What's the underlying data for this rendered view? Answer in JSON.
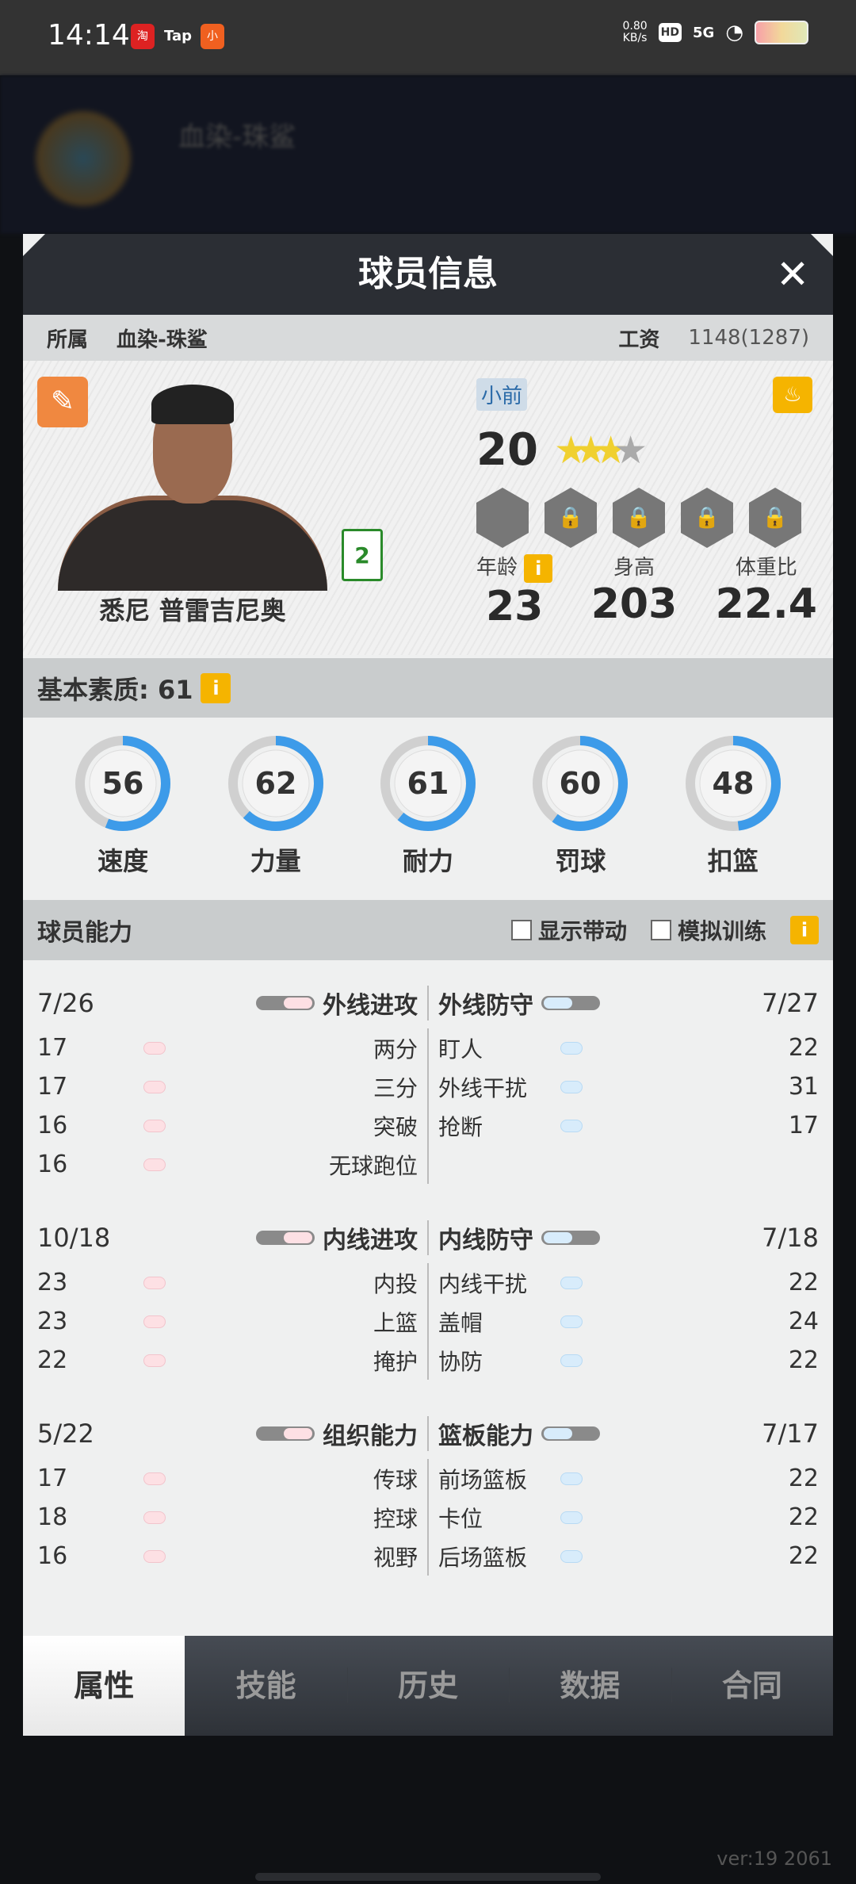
{
  "status_bar": {
    "time": "14:14",
    "apps": [
      "淘",
      "Tap",
      "小"
    ],
    "net_speed": "0.80",
    "net_unit": "KB/s",
    "hd": "HD",
    "signal": "5G"
  },
  "background": {
    "team_name": "血染-珠鲨"
  },
  "modal": {
    "title": "球员信息",
    "info": {
      "team_label": "所属",
      "team": "血染-珠鲨",
      "salary_label": "工资",
      "salary": "1148(1287)"
    },
    "player": {
      "name": "悉尼 普雷吉尼奥",
      "jersey": "2",
      "position": "小前",
      "rating": "20",
      "stars": {
        "filled": 3,
        "total": 4
      },
      "bio": [
        {
          "label": "年龄",
          "value": "23"
        },
        {
          "label": "身高",
          "value": "203"
        },
        {
          "label": "体重比",
          "value": "22.4"
        }
      ],
      "info_icon": "i"
    },
    "basic": {
      "label": "基本素质: 61",
      "info_icon": "i",
      "gauges": [
        {
          "label": "速度",
          "value": 56
        },
        {
          "label": "力量",
          "value": 62
        },
        {
          "label": "耐力",
          "value": 61
        },
        {
          "label": "罚球",
          "value": 60
        },
        {
          "label": "扣篮",
          "value": 48
        }
      ]
    },
    "abilities": {
      "label": "球员能力",
      "show_boost": "显示带动",
      "sim_train": "模拟训练",
      "info_icon": "i",
      "groups": [
        {
          "left": {
            "title": "外线进攻",
            "total": "7/26",
            "items": [
              {
                "label": "两分",
                "value": "17"
              },
              {
                "label": "三分",
                "value": "17"
              },
              {
                "label": "突破",
                "value": "16"
              },
              {
                "label": "无球跑位",
                "value": "16"
              }
            ]
          },
          "right": {
            "title": "外线防守",
            "total": "7/27",
            "items": [
              {
                "label": "盯人",
                "value": "22"
              },
              {
                "label": "外线干扰",
                "value": "31"
              },
              {
                "label": "抢断",
                "value": "17"
              }
            ]
          }
        },
        {
          "left": {
            "title": "内线进攻",
            "total": "10/18",
            "items": [
              {
                "label": "内投",
                "value": "23"
              },
              {
                "label": "上篮",
                "value": "23"
              },
              {
                "label": "掩护",
                "value": "22"
              }
            ]
          },
          "right": {
            "title": "内线防守",
            "total": "7/18",
            "items": [
              {
                "label": "内线干扰",
                "value": "22"
              },
              {
                "label": "盖帽",
                "value": "24"
              },
              {
                "label": "协防",
                "value": "22"
              }
            ]
          }
        },
        {
          "left": {
            "title": "组织能力",
            "total": "5/22",
            "items": [
              {
                "label": "传球",
                "value": "17"
              },
              {
                "label": "控球",
                "value": "18"
              },
              {
                "label": "视野",
                "value": "16"
              }
            ]
          },
          "right": {
            "title": "篮板能力",
            "total": "7/17",
            "items": [
              {
                "label": "前场篮板",
                "value": "22"
              },
              {
                "label": "卡位",
                "value": "22"
              },
              {
                "label": "后场篮板",
                "value": "22"
              }
            ]
          }
        }
      ]
    },
    "tabs": [
      {
        "label": "属性",
        "active": true
      },
      {
        "label": "技能"
      },
      {
        "label": "历史"
      },
      {
        "label": "数据"
      },
      {
        "label": "合同"
      }
    ]
  },
  "version": "ver:19  2061",
  "colors": {
    "gauge": "#3d9be9",
    "accent": "#f5b400"
  }
}
